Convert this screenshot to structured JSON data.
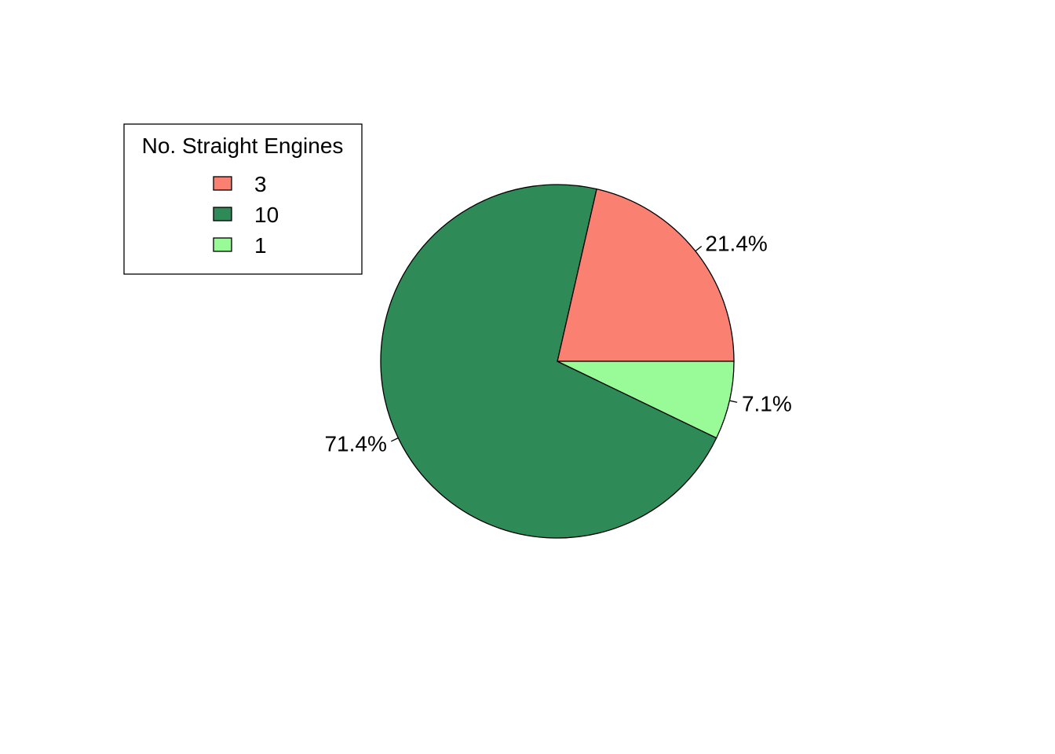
{
  "chart_data": {
    "type": "pie",
    "title": "",
    "start_angle_deg": 0,
    "direction": "counterclockwise",
    "legend": {
      "title": "No. Straight Engines",
      "placement": "top-left"
    },
    "slices": [
      {
        "label": "3",
        "value": 3,
        "percent_label": "21.4%",
        "color": "#FA8072"
      },
      {
        "label": "10",
        "value": 10,
        "percent_label": "71.4%",
        "color": "#2E8B57"
      },
      {
        "label": "1",
        "value": 1,
        "percent_label": "7.1%",
        "color": "#98FB98"
      }
    ]
  }
}
